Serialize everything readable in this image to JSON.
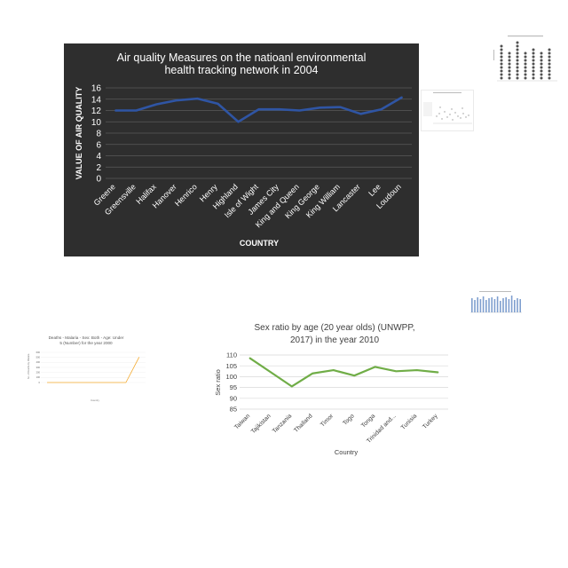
{
  "chart_data": [
    {
      "id": "air",
      "type": "line",
      "title": "Air quality Measures on the natioanl environmental health tracking network in 2004",
      "title_lines": [
        "Air quality Measures on the natioanl environmental",
        "health tracking network in 2004"
      ],
      "xlabel": "COUNTRY",
      "ylabel": "VALUE OF AIR QUALITY",
      "categories": [
        "Greene",
        "Greensville",
        "Halifax",
        "Hanover",
        "Henrico",
        "Henry",
        "Highland",
        "Isle of Wight",
        "James City",
        "King and Queen",
        "King George",
        "King William",
        "Lancaster",
        "Lee",
        "Loudoun"
      ],
      "values": [
        12.0,
        12.0,
        13.1,
        13.8,
        14.1,
        13.2,
        10.0,
        12.2,
        12.2,
        12.0,
        12.5,
        12.6,
        11.4,
        12.2,
        14.3
      ],
      "ylim": [
        0,
        16
      ],
      "yticks": [
        0,
        2,
        4,
        6,
        8,
        10,
        12,
        14,
        16
      ],
      "grid": true,
      "colors": {
        "background": "#2e2e2e",
        "line": "#2f55a4",
        "text": "#ffffff",
        "grid": "#5a5a5a"
      }
    },
    {
      "id": "sex",
      "type": "line",
      "title": "Sex ratio by age (20 year olds) (UNWPP, 2017) in the year 2010",
      "title_lines": [
        "Sex ratio by age (20 year olds) (UNWPP,",
        "2017) in the year 2010"
      ],
      "xlabel": "Country",
      "ylabel": "Sex ratio",
      "categories": [
        "Taiwan",
        "Tajikistan",
        "Tanzania",
        "Thailand",
        "Timor",
        "Togo",
        "Tonga",
        "Trinidad and...",
        "Tunisia",
        "Turkey"
      ],
      "values": [
        108.5,
        102.0,
        95.5,
        101.5,
        103.0,
        100.5,
        104.5,
        102.5,
        103.0,
        102.0
      ],
      "ylim": [
        85,
        110
      ],
      "yticks": [
        85,
        90,
        95,
        100,
        105,
        110
      ],
      "grid": true,
      "colors": {
        "line": "#70ad47",
        "text": "#404040",
        "grid": "#d9d9d9"
      }
    },
    {
      "id": "malaria",
      "type": "line",
      "title": "Deaths - Malaria - Sex: Both - Age: Under 5 (Number) for the year 2000",
      "title_lines": [
        "Deaths - Malaria - Sex: Both - Age: Under",
        "5 (Number) for the year 2000"
      ],
      "xlabel": "Country",
      "ylabel": "No. of Deaths by Malaria",
      "categories": [
        "",
        "",
        "",
        "",
        "",
        "",
        "",
        ""
      ],
      "values": [
        0,
        0,
        0,
        0,
        0,
        0,
        0,
        500
      ],
      "ylim": [
        0,
        600
      ],
      "yticks": [
        0,
        100,
        200,
        300,
        400,
        500,
        600
      ],
      "grid": true,
      "colors": {
        "line": "#f4a92c",
        "text": "#666666",
        "grid": "#e6e6e6"
      }
    }
  ]
}
